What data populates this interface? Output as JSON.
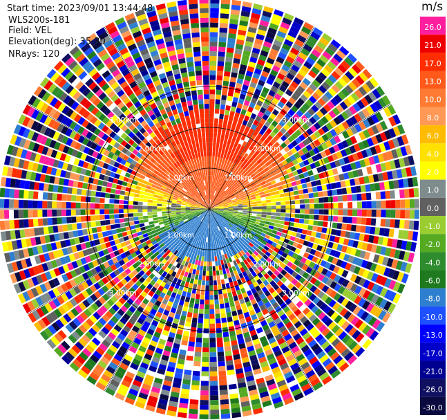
{
  "header": {
    "start_time": "Start time: 2023/09/01 13:44:48",
    "site": "WLS200s-181",
    "field": "Field: VEL",
    "elevation": "Elevation(deg): 35.30",
    "nrays": "NRays: 120"
  },
  "colorbar": {
    "unit": "m/s",
    "labels": [
      "26.0",
      "21.0",
      "17.0",
      "13.0",
      "10.0",
      "8.0",
      "6.0",
      "4.0",
      "2.0",
      "1.0",
      "0.0",
      "-1.0",
      "-2.0",
      "-4.0",
      "-6.0",
      "-8.0",
      "-10.0",
      "-13.0",
      "-17.0",
      "-21.0",
      "-26.0",
      "-30.0"
    ],
    "colors": [
      "#ff1f9e",
      "#ee0000",
      "#ff2d00",
      "#ff5a1a",
      "#ff7b33",
      "#ff9955",
      "#ffbb00",
      "#ffe100",
      "#ffff00",
      "#7f8c8d",
      "#606060",
      "#9acd32",
      "#55aa22",
      "#2e8b2e",
      "#1f7a1f",
      "#2f7fd0",
      "#1e50ff",
      "#0000ff",
      "#0000c8",
      "#000090",
      "#101060",
      "#0a0a40"
    ]
  },
  "range_labels": [
    "1.00km",
    "2.00km",
    "3.00km"
  ],
  "chart_data": {
    "type": "ppi",
    "field": "VEL",
    "units": "m/s",
    "elevation_deg": 35.3,
    "n_rays": 120,
    "range_rings_km": [
      1.0,
      2.0,
      3.0
    ],
    "color_levels": [
      26.0,
      21.0,
      17.0,
      13.0,
      10.0,
      8.0,
      6.0,
      4.0,
      2.0,
      1.0,
      0.0,
      -1.0,
      -2.0,
      -4.0,
      -6.0,
      -8.0,
      -10.0,
      -13.0,
      -17.0,
      -21.0,
      -26.0,
      -30.0
    ],
    "notes": "Inner region (< ~2.3 km): receding orange/red velocities north, ~0 m/s along east-west axis, approaching blue/green to the south; outer region dominated by noise."
  }
}
